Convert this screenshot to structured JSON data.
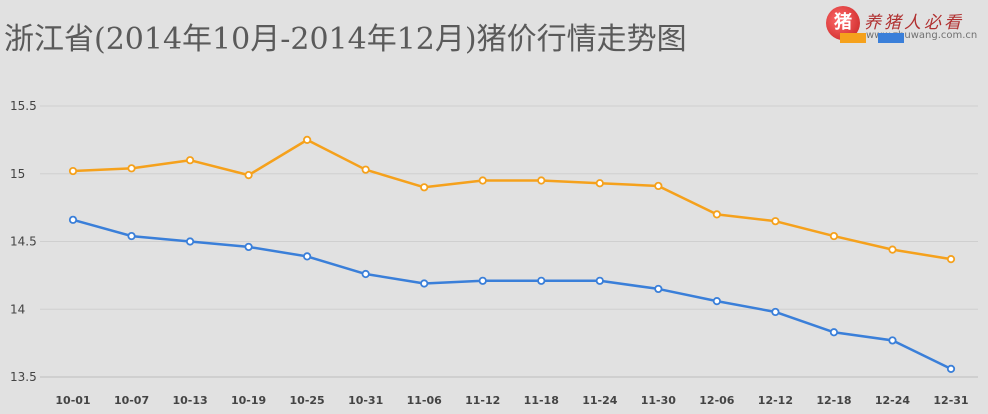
{
  "title": "浙江省(2014年10月-2014年12月)猪价行情走势图",
  "watermark": {
    "seal_char": "猪",
    "text": "养猪人必看",
    "url": "www.zhuwang.com.cn"
  },
  "chart_data": {
    "type": "line",
    "title": "浙江省(2014年10月-2014年12月)猪价行情走势图",
    "xlabel": "",
    "ylabel": "",
    "categories": [
      "10-01",
      "10-07",
      "10-13",
      "10-19",
      "10-25",
      "10-31",
      "11-06",
      "11-12",
      "11-18",
      "11-24",
      "11-30",
      "12-06",
      "12-12",
      "12-18",
      "12-24",
      "12-31"
    ],
    "ylim": [
      13.5,
      15.5
    ],
    "yticks": [
      "13.5",
      "14",
      "14.5",
      "15",
      "15.5"
    ],
    "grid": "horizontal",
    "legend": "top-right",
    "series": [
      {
        "name": "",
        "color": "#f5a11c",
        "values": [
          15.02,
          15.04,
          15.1,
          14.99,
          15.25,
          15.03,
          14.9,
          14.95,
          14.95,
          14.93,
          14.91,
          14.7,
          14.65,
          14.54,
          14.44,
          14.37
        ]
      },
      {
        "name": "",
        "color": "#3a7fd9",
        "values": [
          14.66,
          14.54,
          14.5,
          14.46,
          14.39,
          14.26,
          14.19,
          14.21,
          14.21,
          14.21,
          14.15,
          14.06,
          13.98,
          13.83,
          13.77,
          13.56
        ]
      }
    ]
  }
}
